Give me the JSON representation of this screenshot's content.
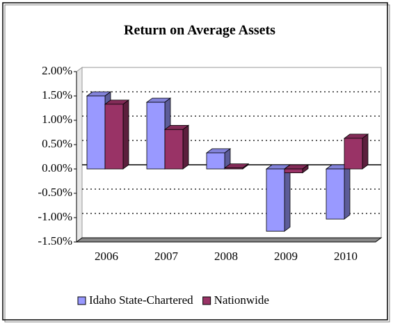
{
  "chart_data": {
    "type": "bar3d",
    "title": "Return on Average Assets",
    "categories": [
      "2006",
      "2007",
      "2008",
      "2009",
      "2010"
    ],
    "series": [
      {
        "name": "Idaho State-Chartered",
        "color": "#9999ff",
        "values": [
          1.5,
          1.37,
          0.33,
          -1.28,
          -1.03
        ]
      },
      {
        "name": "Nationwide",
        "color": "#993366",
        "values": [
          1.33,
          0.81,
          0.02,
          -0.08,
          0.63
        ]
      }
    ],
    "ylim": [
      -1.5,
      2.0
    ],
    "yticks": [
      {
        "value": 2.0,
        "label": "2.00%"
      },
      {
        "value": 1.5,
        "label": "1.50%"
      },
      {
        "value": 1.0,
        "label": "1.00%"
      },
      {
        "value": 0.5,
        "label": "0.50%"
      },
      {
        "value": 0.0,
        "label": "0.00%"
      },
      {
        "value": -0.5,
        "label": "-0.50%"
      },
      {
        "value": -1.0,
        "label": "-1.00%"
      },
      {
        "value": -1.5,
        "label": "-1.50%"
      }
    ],
    "grid": true,
    "legend": "bottom"
  }
}
